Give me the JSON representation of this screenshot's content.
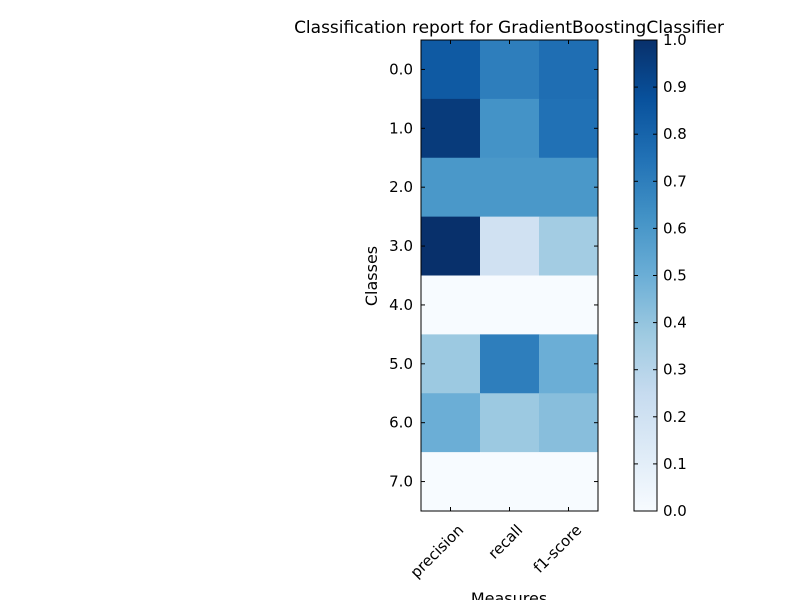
{
  "chart_data": {
    "type": "heatmap",
    "title": "Classification report for GradientBoostingClassifier",
    "xlabel": "Measures",
    "ylabel": "Classes",
    "columns": [
      "precision",
      "recall",
      "f1-score"
    ],
    "rows": [
      "0.0",
      "1.0",
      "2.0",
      "3.0",
      "4.0",
      "5.0",
      "6.0",
      "7.0"
    ],
    "values": [
      [
        0.84,
        0.7,
        0.76
      ],
      [
        0.96,
        0.62,
        0.75
      ],
      [
        0.6,
        0.6,
        0.6
      ],
      [
        1.0,
        0.2,
        0.36
      ],
      [
        0.0,
        0.0,
        0.0
      ],
      [
        0.38,
        0.7,
        0.5
      ],
      [
        0.5,
        0.38,
        0.43
      ],
      [
        0.0,
        0.0,
        0.0
      ]
    ],
    "colormap": "Blues",
    "colorbar": {
      "range": [
        0.0,
        1.0
      ],
      "ticks": [
        "0.0",
        "0.1",
        "0.2",
        "0.3",
        "0.4",
        "0.5",
        "0.6",
        "0.7",
        "0.8",
        "0.9",
        "1.0"
      ]
    }
  }
}
